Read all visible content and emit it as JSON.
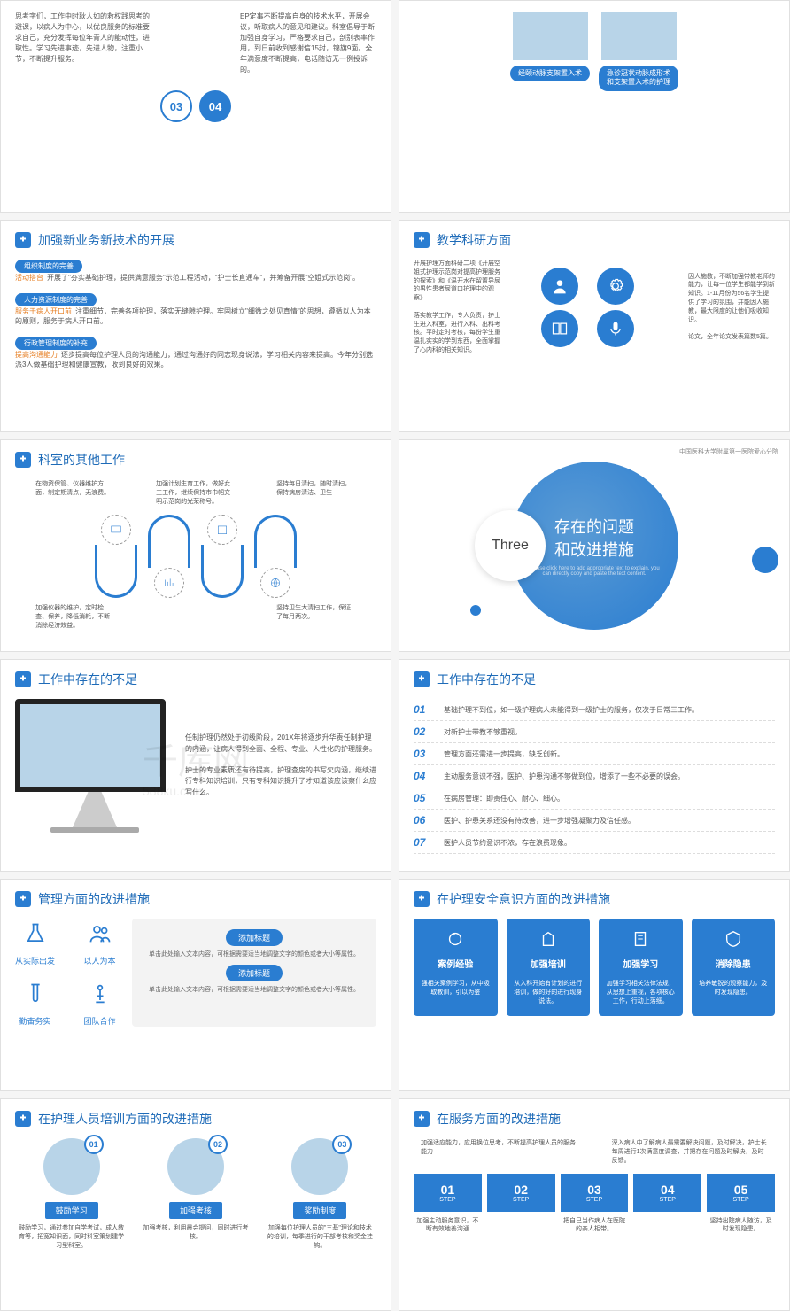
{
  "colors": {
    "primary": "#2a7dd1",
    "accent": "#e67e22",
    "text": "#555",
    "bg": "#ffffff"
  },
  "watermark": {
    "main": "千库网",
    "sub": "588ku.com"
  },
  "s1": {
    "left_text": "思考字们，工作中时耿人如的救权践思考的避课，以病人为中心，以优良服务的标准要求自己，充分发挥每位年青人的能动性，进取性。学习先进事迹，先进人物，注重小节，不断提升服务。",
    "nums": [
      "03",
      "04"
    ],
    "right_text": "EP定事不断提高自身的技术水平，开展会议，听取病人的意见和建议。科室倡导于断加强自身学习，严格要求自己，剖别表率作用，到日前收到感谢信15封，锦旗9面。全年满意度不断提高，电话随访无一例投诉的。"
  },
  "s2": {
    "btn1": "经颐动脉支架置入术",
    "btn2": "急诊冠状动脉成形术和支架置入术的护理"
  },
  "s3": {
    "title": "加强新业务新技术的开展",
    "tag1": "组织制度的完善",
    "lbl1": "活动搭台",
    "txt1": "开展了\"夯实基础护理，提供满意服务\"示范工程活动，\"护士长直通车\"，并筹备开展\"空姐式示范岗\"。",
    "tag2": "人力资源制度的完善",
    "lbl2": "服务于病人开口前",
    "txt2": "注重细节，完善各项护理，落实无缝隙护理。牢固树立\"细微之处见真情\"的思想，遵循以人为本的原则，服务于病人开口前。",
    "tag3": "行政管理制度的补充",
    "lbl3": "提高沟通能力",
    "txt3": "逐步提高每位护理人员的沟通能力，通过沟通好的同志现身说法，学习相关内容来提高。今年分别选派3人做基础护理和健康宣教，收到良好的效果。"
  },
  "s4": {
    "title": "教学科研方面",
    "left": "开展护理方面科研二项《开展空姐式护理示范岗对提高护理服务的探索》和《温开水在留置导尿的男性患者尿道口护理中的观察》",
    "left2": "落实教学工作，专人负责，护士生进入科室，进行入科、出科考核。平时定时考核，每份学生重温扎实实的学到东西，全面掌握了心内科的相关知识。",
    "right": "因人施教，不断加强带教老师的能力，让每一位学生都能学到新知识。1-11月份为56名学生提供了学习的氛围，并能因人施教，最大限度的让他们吸收知识。",
    "right2": "论文，全年论文发表篇数5篇。"
  },
  "s5": {
    "title": "科室的其他工作",
    "items": [
      "在物资保管、仪器维护方面，制定期清点，无浪费。",
      "加强计划生育工作，做好女工工作，继续保持市巾帼文明示范岗的光荣称号。",
      "坚持每日清扫，随时清扫，保持病房清洁、卫生",
      "加强仪器的维护，定时检查、保养，降低消耗，不断消除经济效益。",
      "",
      "坚持卫生大清扫工作，保证了每月两次。"
    ]
  },
  "s6": {
    "three": "Three",
    "t1": "存在的问题",
    "t2": "和改进措施",
    "sub": "Please click here to add appropriate text to explain, you can directly copy and paste the text content.",
    "org": "中国医科大学附属第一医院爱心分院"
  },
  "s7": {
    "title": "工作中存在的不足",
    "p1": "任制护理仍然处于初级阶段，201X年将逐步升华责任制护理的内涵，让病人得到全面、全程、专业、人性化的护理服务。",
    "p2": "护士的专业素质还有待提高，护理查房的书写欠内涵，继续进行专科知识培训，只有专科知识提升了才知道该应该察什么应写什么。"
  },
  "s8": {
    "title": "工作中存在的不足",
    "items": [
      "基础护理不到位，如一级护理病人未能得到一级护士的服务，仅次于日常三工作。",
      "对新护士带教不够重视。",
      "管理方面还需进一步提高，缺乏创新。",
      "主动服务意识不强，医护、护患沟通不够做到位，增添了一些不必要的误会。",
      "在病房管理：即责任心、耐心、细心。",
      "医护、护患关系还没有待改善，进一步增强凝聚力及信任感。",
      "医护人员节约意识不浓，存在浪费现象。"
    ]
  },
  "s9": {
    "title": "管理方面的改进措施",
    "icons": [
      "从实际出发",
      "以人为本",
      "勤奋务实",
      "团队合作"
    ],
    "pill": "添加标题",
    "desc": "单击此处输入文本内容，可根据需要适当地调整文字的颜色或者大小等属性。"
  },
  "s10": {
    "title": "在护理安全意识方面的改进措施",
    "cards": [
      {
        "t": "案例经验",
        "d": "强相关案例学习，从中吸取教训，引以为鉴"
      },
      {
        "t": "加强培训",
        "d": "从入科开始有计划的进行培训，做的好的进行现身说法。"
      },
      {
        "t": "加强学习",
        "d": "加强学习相关法律法规，从思想上重视，各项核心工作，行动上落细。"
      },
      {
        "t": "消除隐患",
        "d": "培养敏锐的观察能力，及时发现隐患。"
      }
    ]
  },
  "s11": {
    "title": "在护理人员培训方面的改进措施",
    "items": [
      {
        "n": "01",
        "t": "鼓励学习",
        "d": "鼓励学习，通过参加自学考试，成人教育等，拓宽知识面，同时科室策划建学习型科室。"
      },
      {
        "n": "02",
        "t": "加强考核",
        "d": "加强考核，利用晨会提问，同时进行考核。"
      },
      {
        "n": "03",
        "t": "奖励制度",
        "d": "加强每位护理人员的\"三基\"理论和技术的培训，每季进行的干部考核和奖金挂钩。"
      }
    ]
  },
  "s12": {
    "title": "在服务方面的改进措施",
    "h1": "加强适应能力，应用换位思考，不断提高护理人员的服务能力",
    "h2": "深入病人中了解病人最需要解决问题，及时解决，护士长每周进行1次满意度调查，并把存在问题及时解决，及时反馈。",
    "steps": [
      {
        "n": "01",
        "w": "STEP",
        "d": "加强主动服务意识，不断有效地善沟通"
      },
      {
        "n": "02",
        "w": "STEP",
        "d": ""
      },
      {
        "n": "03",
        "w": "STEP",
        "d": "把自己当作病人在医院的亲人相带。"
      },
      {
        "n": "04",
        "w": "STEP",
        "d": ""
      },
      {
        "n": "05",
        "w": "STEP",
        "d": "坚持出院病人随访，及时发现隐患。"
      }
    ]
  }
}
